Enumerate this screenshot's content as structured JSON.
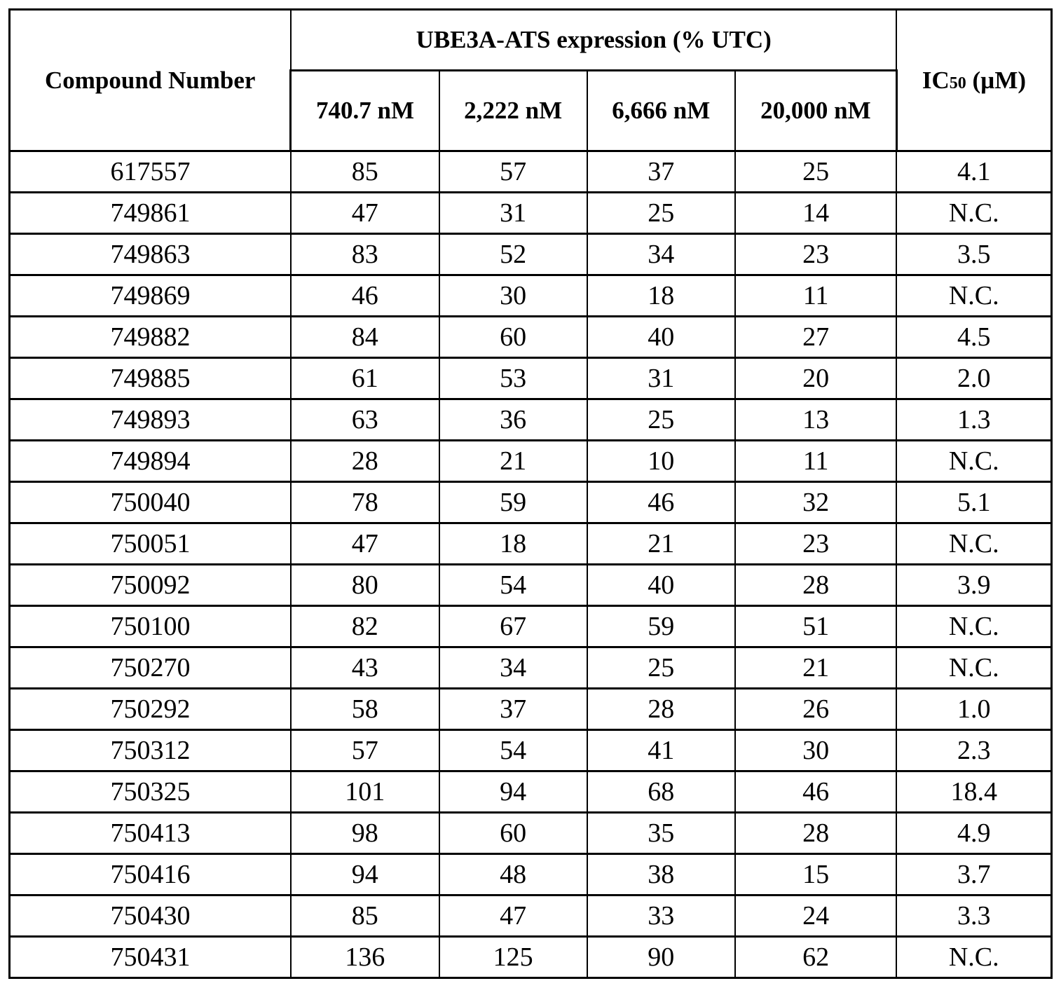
{
  "table": {
    "col_compound": "Compound Number",
    "group_header": "UBE3A-ATS expression (% UTC)",
    "ic50_main": "IC",
    "ic50_sub": "50",
    "ic50_unit": " (µM)",
    "concentrations": [
      "740.7 nM",
      "2,222 nM",
      "6,666 nM",
      "20,000 nM"
    ],
    "rows": [
      [
        "617557",
        "85",
        "57",
        "37",
        "25",
        "4.1"
      ],
      [
        "749861",
        "47",
        "31",
        "25",
        "14",
        "N.C."
      ],
      [
        "749863",
        "83",
        "52",
        "34",
        "23",
        "3.5"
      ],
      [
        "749869",
        "46",
        "30",
        "18",
        "11",
        "N.C."
      ],
      [
        "749882",
        "84",
        "60",
        "40",
        "27",
        "4.5"
      ],
      [
        "749885",
        "61",
        "53",
        "31",
        "20",
        "2.0"
      ],
      [
        "749893",
        "63",
        "36",
        "25",
        "13",
        "1.3"
      ],
      [
        "749894",
        "28",
        "21",
        "10",
        "11",
        "N.C."
      ],
      [
        "750040",
        "78",
        "59",
        "46",
        "32",
        "5.1"
      ],
      [
        "750051",
        "47",
        "18",
        "21",
        "23",
        "N.C."
      ],
      [
        "750092",
        "80",
        "54",
        "40",
        "28",
        "3.9"
      ],
      [
        "750100",
        "82",
        "67",
        "59",
        "51",
        "N.C."
      ],
      [
        "750270",
        "43",
        "34",
        "25",
        "21",
        "N.C."
      ],
      [
        "750292",
        "58",
        "37",
        "28",
        "26",
        "1.0"
      ],
      [
        "750312",
        "57",
        "54",
        "41",
        "30",
        "2.3"
      ],
      [
        "750325",
        "101",
        "94",
        "68",
        "46",
        "18.4"
      ],
      [
        "750413",
        "98",
        "60",
        "35",
        "28",
        "4.9"
      ],
      [
        "750416",
        "94",
        "48",
        "38",
        "15",
        "3.7"
      ],
      [
        "750430",
        "85",
        "47",
        "33",
        "24",
        "3.3"
      ],
      [
        "750431",
        "136",
        "125",
        "90",
        "62",
        "N.C."
      ]
    ]
  }
}
